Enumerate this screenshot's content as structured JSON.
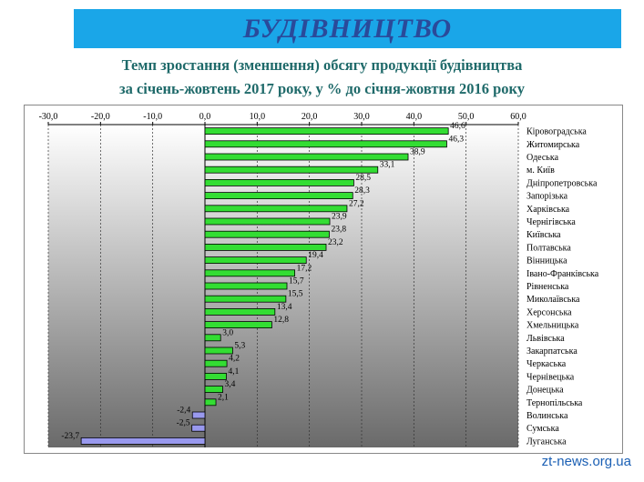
{
  "header": {
    "banner_title": "БУДІВНИЦТВО",
    "subtitle_line1": "Темп зростання (зменшення) обсягу продукції  будівництва",
    "subtitle_line2": "за січень-жовтень 2017 року, у % до січня-жовтня 2016 року"
  },
  "watermark": "zt-news.org.ua",
  "colors": {
    "banner": "#1aa6e8",
    "positive_bar": "#33dd33",
    "negative_bar": "#9999ee"
  },
  "chart_data": {
    "type": "bar",
    "orientation": "horizontal",
    "xlim": [
      -30,
      60
    ],
    "x_ticks": [
      "-30,0",
      "-20,0",
      "-10,0",
      "0,0",
      "10,0",
      "20,0",
      "30,0",
      "40,0",
      "50,0",
      "60,0"
    ],
    "x_axis_position": "top",
    "grid": true,
    "categories": [
      "Кіровоградська",
      "Житомирська",
      "Одеська",
      "м. Київ",
      "Дніпропетровська",
      "Запорізька",
      "Харківська",
      "Чернігівська",
      "Київська",
      "Полтавська",
      "Вінницька",
      "Івано-Франківська",
      "Рівненська",
      "Миколаївська",
      "Херсонська",
      "Хмельницька",
      "Львівська",
      "Закарпатська",
      "Черкаська",
      "Чернівецька",
      "Донецька",
      "Тернопільська",
      "Волинська",
      "Сумська",
      "Луганська"
    ],
    "values": [
      46.6,
      46.3,
      38.9,
      33.1,
      28.5,
      28.3,
      27.2,
      23.9,
      23.8,
      23.2,
      19.4,
      17.2,
      15.7,
      15.5,
      13.4,
      12.8,
      3.0,
      5.3,
      4.2,
      4.1,
      3.4,
      2.1,
      -2.4,
      -2.5,
      -23.7
    ],
    "value_labels": [
      "46,6",
      "46,3",
      "38,9",
      "33,1",
      "28,5",
      "28,3",
      "27,2",
      "23,9",
      "23,8",
      "23,2",
      "19,4",
      "17,2",
      "15,7",
      "15,5",
      "13,4",
      "12,8",
      "3,0",
      "5,3",
      "4,2",
      "4,1",
      "3,4",
      "2,1",
      "-2,4",
      "-2,5",
      "-23,7"
    ]
  }
}
